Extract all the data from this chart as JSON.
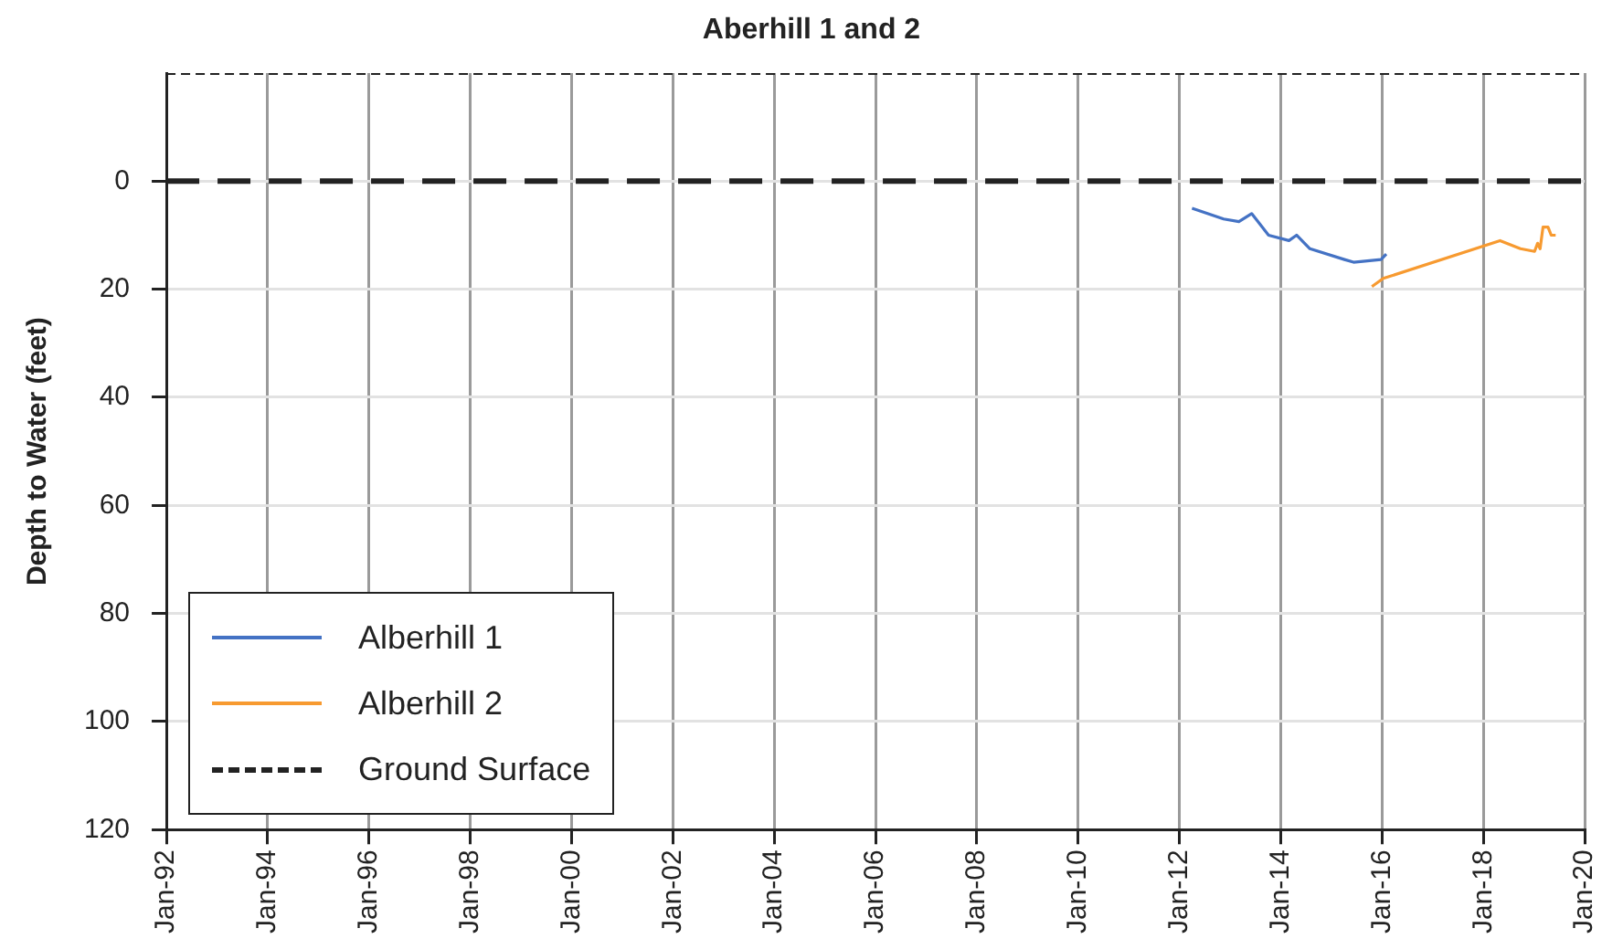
{
  "chart_data": {
    "type": "line",
    "title": "Aberhill 1 and 2",
    "ylabel": "Depth to Water (feet)",
    "xlim": [
      "1992-01",
      "2020-01"
    ],
    "xticks": [
      {
        "value": "1992-01",
        "label": "Jan-92"
      },
      {
        "value": "1994-01",
        "label": "Jan-94"
      },
      {
        "value": "1996-01",
        "label": "Jan-96"
      },
      {
        "value": "1998-01",
        "label": "Jan-98"
      },
      {
        "value": "2000-01",
        "label": "Jan-00"
      },
      {
        "value": "2002-01",
        "label": "Jan-02"
      },
      {
        "value": "2004-01",
        "label": "Jan-04"
      },
      {
        "value": "2006-01",
        "label": "Jan-06"
      },
      {
        "value": "2008-01",
        "label": "Jan-08"
      },
      {
        "value": "2010-01",
        "label": "Jan-10"
      },
      {
        "value": "2012-01",
        "label": "Jan-12"
      },
      {
        "value": "2014-01",
        "label": "Jan-14"
      },
      {
        "value": "2016-01",
        "label": "Jan-16"
      },
      {
        "value": "2018-01",
        "label": "Jan-18"
      },
      {
        "value": "2020-01",
        "label": "Jan-20"
      }
    ],
    "ylim": [
      120,
      -20
    ],
    "yticks": [
      0,
      20,
      40,
      60,
      80,
      100,
      120
    ],
    "grid": true,
    "legend": "bottom left",
    "marker": "none",
    "line_style": "solid",
    "series": [
      {
        "name": "Alberhill 1",
        "color": "#4472c4",
        "x": [
          "2012-04-01",
          "2012-11-15",
          "2013-03-05",
          "2013-06-05",
          "2013-10-05",
          "2014-03-01",
          "2014-04-25",
          "2014-07-30",
          "2015-04-05",
          "2015-06-10",
          "2015-12-25",
          "2016-02-01"
        ],
        "values": [
          5,
          7,
          7.5,
          6,
          10,
          11,
          10,
          12.5,
          14.5,
          15,
          14.5,
          13.5
        ]
      },
      {
        "name": "Alberhill 2",
        "color": "#f79a30",
        "x": [
          "2015-10-20",
          "2016-01-10",
          "2018-05-01",
          "2018-09-25",
          "2019-01-05",
          "2019-01-27",
          "2019-02-14",
          "2019-03-07",
          "2019-04-12",
          "2019-05-05",
          "2019-06-06"
        ],
        "values": [
          19.5,
          18,
          11,
          12.5,
          13,
          11.5,
          12.5,
          8.5,
          8.5,
          10,
          10
        ]
      }
    ],
    "ref_lines": [
      {
        "axis": "y",
        "value": 0,
        "label": "Ground Surface",
        "color": "#222222",
        "line_style": "dashed"
      }
    ]
  }
}
